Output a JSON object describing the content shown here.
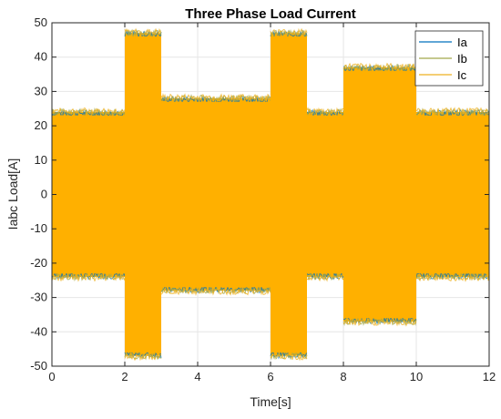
{
  "chart_data": {
    "type": "line",
    "title": "Three Phase Load Current",
    "xlabel": "Time[s]",
    "ylabel": "Iabc Load[A]",
    "xlim": [
      0,
      12
    ],
    "ylim": [
      -50,
      50
    ],
    "xticks": [
      0,
      2,
      4,
      6,
      8,
      10,
      12
    ],
    "yticks": [
      -50,
      -40,
      -30,
      -20,
      -10,
      0,
      10,
      20,
      30,
      40,
      50
    ],
    "grid": true,
    "legend_position": "top-right",
    "envelope": {
      "x": [
        0,
        2,
        2,
        3,
        3,
        6,
        6,
        7,
        7,
        8,
        8,
        10,
        10,
        12
      ],
      "amplitude": [
        24,
        24,
        47,
        47,
        28,
        28,
        47,
        47,
        24,
        24,
        37,
        37,
        24,
        24
      ]
    },
    "series": [
      {
        "name": "Ia",
        "color": "#0072BD"
      },
      {
        "name": "Ib",
        "color": "#A2A84A"
      },
      {
        "name": "Ic",
        "color": "#EDB120"
      }
    ],
    "fill_color": "#FFB000"
  }
}
